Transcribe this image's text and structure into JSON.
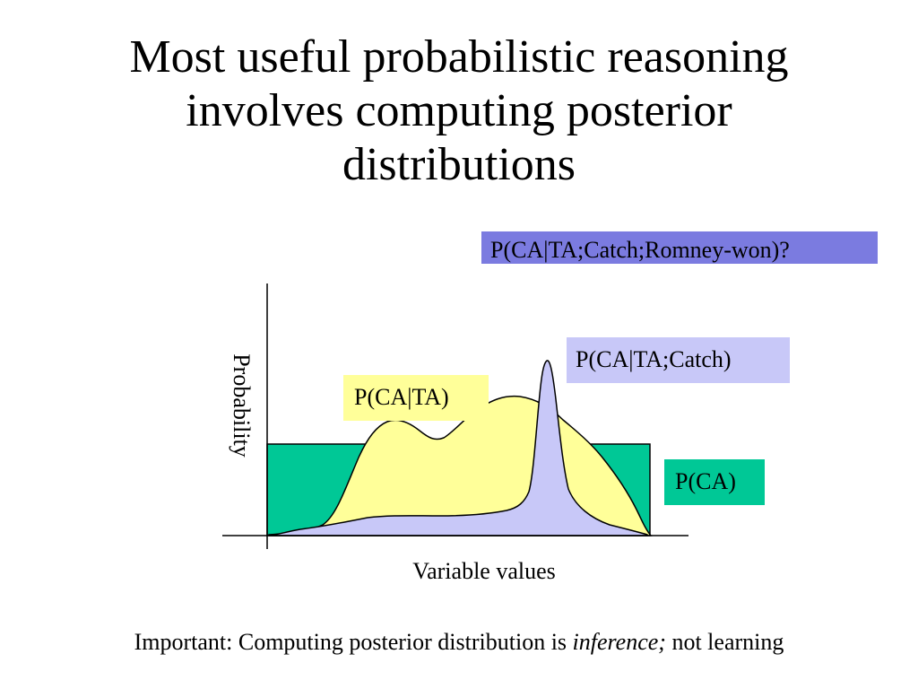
{
  "title": {
    "line1": "Most useful probabilistic reasoning",
    "line2": "involves computing posterior",
    "line3": "distributions"
  },
  "labels": {
    "query": "P(CA|TA;Catch;Romney-won)?",
    "catch": "P(CA|TA;Catch)",
    "ta": "P(CA|TA)",
    "ca": "P(CA)"
  },
  "axes": {
    "y_label": "Probability",
    "x_label": "Variable values"
  },
  "footnote": {
    "prefix": "Important: Computing posterior distribution is ",
    "emphasis": "inference;",
    "suffix": " not learning"
  },
  "colors": {
    "query_box": "#7b7be0",
    "catch_box": "#c8c8f8",
    "catch_fill": "#c8c8f8",
    "ta_box": "#ffff99",
    "ta_fill": "#ffff99",
    "ca_box": "#00c896",
    "ca_fill": "#00c896",
    "axis": "#000000"
  }
}
